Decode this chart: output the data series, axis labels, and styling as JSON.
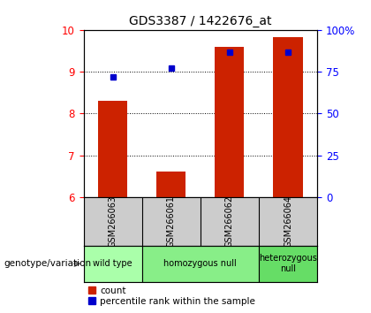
{
  "title": "GDS3387 / 1422676_at",
  "samples": [
    "GSM266063",
    "GSM266061",
    "GSM266062",
    "GSM266064"
  ],
  "bar_values": [
    8.3,
    6.62,
    9.6,
    9.82
  ],
  "bar_bottom": 6.0,
  "percentile_values": [
    8.88,
    9.08,
    9.46,
    9.46
  ],
  "ylim_left": [
    6,
    10
  ],
  "ylim_right": [
    0,
    100
  ],
  "yticks_left": [
    6,
    7,
    8,
    9,
    10
  ],
  "yticks_right": [
    0,
    25,
    50,
    75,
    100
  ],
  "bar_color": "#cc2200",
  "percentile_color": "#0000cc",
  "genotype_groups": [
    {
      "label": "wild type",
      "span": [
        0,
        1
      ],
      "color": "#aaffaa"
    },
    {
      "label": "homozygous null",
      "span": [
        1,
        3
      ],
      "color": "#88ee88"
    },
    {
      "label": "heterozygous\nnull",
      "span": [
        3,
        4
      ],
      "color": "#66dd66"
    }
  ],
  "legend_items": [
    {
      "label": "count",
      "color": "#cc2200"
    },
    {
      "label": "percentile rank within the sample",
      "color": "#0000cc"
    }
  ],
  "background_color": "#ffffff",
  "sample_panel_color": "#cccccc",
  "genotype_label": "genotype/variation",
  "bar_width": 0.5
}
